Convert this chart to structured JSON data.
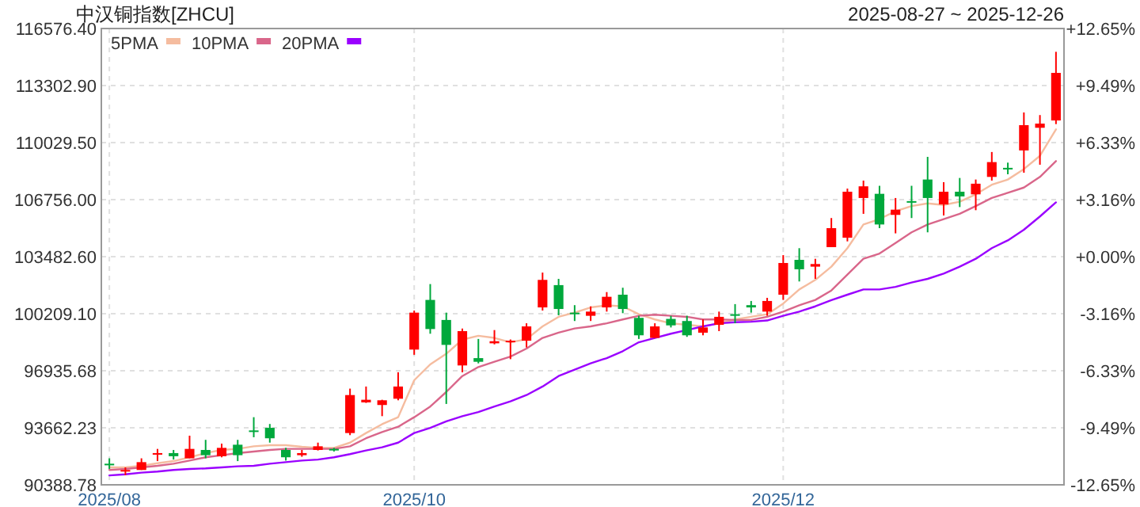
{
  "chart_data": {
    "type": "candlestick",
    "title": "中汉铜指数[ZHCU]",
    "subtitle": "2025-08-27 ~ 2025-12-26",
    "categories": [
      "2025/08",
      null,
      null,
      null,
      null,
      null,
      null,
      null,
      null,
      null,
      null,
      null,
      null,
      null,
      null,
      null,
      null,
      null,
      null,
      "2025/10",
      null,
      null,
      null,
      null,
      null,
      null,
      null,
      null,
      null,
      null,
      null,
      null,
      null,
      null,
      null,
      null,
      null,
      null,
      null,
      null,
      null,
      null,
      "2025/12",
      null,
      null,
      null,
      null,
      null,
      null,
      null,
      null,
      null,
      null,
      null,
      null,
      null,
      null,
      null,
      null,
      null
    ],
    "ohlc": [
      [
        91600,
        91910,
        91300,
        91540
      ],
      [
        91150,
        91390,
        90940,
        91240
      ],
      [
        91240,
        91910,
        91240,
        91690
      ],
      [
        92150,
        92450,
        91750,
        92210
      ],
      [
        92210,
        92390,
        91840,
        92030
      ],
      [
        91910,
        93210,
        91910,
        92450
      ],
      [
        92390,
        92970,
        91910,
        92090
      ],
      [
        92030,
        92750,
        91970,
        92510
      ],
      [
        92690,
        92970,
        91750,
        92090
      ],
      [
        93510,
        94270,
        93120,
        93420
      ],
      [
        93660,
        93880,
        92810,
        93060
      ],
      [
        92390,
        92510,
        91780,
        91970
      ],
      [
        92090,
        92390,
        92000,
        92210
      ],
      [
        92390,
        92810,
        92360,
        92600
      ],
      [
        92450,
        92510,
        92300,
        92360
      ],
      [
        93360,
        95910,
        93240,
        95540
      ],
      [
        95120,
        96030,
        95090,
        95270
      ],
      [
        94970,
        95270,
        94330,
        95240
      ],
      [
        95330,
        96850,
        95240,
        96030
      ],
      [
        98150,
        100390,
        97850,
        100270
      ],
      [
        101000,
        101910,
        99060,
        99330
      ],
      [
        99850,
        100270,
        95030,
        98420
      ],
      [
        97240,
        99360,
        96850,
        99210
      ],
      [
        97660,
        98760,
        97360,
        97450
      ],
      [
        98510,
        99270,
        98450,
        98630
      ],
      [
        98570,
        98730,
        97600,
        98660
      ],
      [
        98660,
        99660,
        98270,
        99480
      ],
      [
        100570,
        102570,
        100390,
        102150
      ],
      [
        101850,
        102210,
        100120,
        100480
      ],
      [
        100270,
        100700,
        99790,
        100180
      ],
      [
        100090,
        100630,
        99790,
        100330
      ],
      [
        100570,
        101450,
        100330,
        101180
      ],
      [
        101300,
        101700,
        100240,
        100480
      ],
      [
        99970,
        100090,
        98760,
        98970
      ],
      [
        98820,
        99660,
        98820,
        99480
      ],
      [
        99910,
        100090,
        99420,
        99540
      ],
      [
        99790,
        100090,
        98880,
        98970
      ],
      [
        99120,
        99880,
        98970,
        99420
      ],
      [
        99570,
        100330,
        99210,
        100030
      ],
      [
        100180,
        100760,
        99660,
        100090
      ],
      [
        100700,
        100940,
        100270,
        100570
      ],
      [
        100330,
        101120,
        100090,
        100940
      ],
      [
        101300,
        103570,
        101000,
        103120
      ],
      [
        103300,
        103970,
        102060,
        102760
      ],
      [
        102910,
        103360,
        102210,
        103060
      ],
      [
        104030,
        105700,
        104030,
        105120
      ],
      [
        104570,
        107390,
        104360,
        107210
      ],
      [
        106850,
        107850,
        105940,
        107520
      ],
      [
        107090,
        107550,
        105120,
        105330
      ],
      [
        105880,
        106850,
        104820,
        106180
      ],
      [
        106670,
        107550,
        105700,
        106610
      ],
      [
        107910,
        109210,
        104880,
        106850
      ],
      [
        106480,
        107760,
        105850,
        107210
      ],
      [
        107210,
        108000,
        106330,
        106940
      ],
      [
        107060,
        107910,
        106150,
        107670
      ],
      [
        108060,
        109490,
        107850,
        108910
      ],
      [
        108580,
        108880,
        108210,
        108520
      ],
      [
        109580,
        111760,
        108300,
        111030
      ],
      [
        110880,
        111610,
        108760,
        111120
      ],
      [
        111300,
        115240,
        111090,
        114030
      ]
    ],
    "series": [
      {
        "name": "5PMA",
        "type": "line",
        "color": "#f5bc9f",
        "values": [
          91390,
          91390,
          91480,
          91630,
          91750,
          91970,
          92210,
          92390,
          92450,
          92600,
          92660,
          92660,
          92570,
          92510,
          92510,
          92810,
          93360,
          93870,
          94270,
          96390,
          97300,
          97910,
          98720,
          98940,
          98820,
          98570,
          98750,
          99480,
          100030,
          100270,
          100570,
          100690,
          100630,
          100180,
          99880,
          99660,
          99570,
          99480,
          99660,
          99880,
          100030,
          100180,
          100790,
          101600,
          102150,
          102910,
          103970,
          105330,
          105640,
          106090,
          106390,
          106540,
          106450,
          106640,
          107060,
          107610,
          107910,
          108510,
          109270,
          110790
        ]
      },
      {
        "name": "10PMA",
        "type": "line",
        "color": "#d9668a",
        "values": [
          91240,
          91300,
          91390,
          91480,
          91600,
          91780,
          91970,
          92090,
          92210,
          92300,
          92390,
          92450,
          92450,
          92450,
          92450,
          92600,
          93060,
          93420,
          93720,
          94270,
          94880,
          95720,
          96630,
          97150,
          97450,
          97750,
          98210,
          98820,
          99120,
          99360,
          99480,
          99660,
          99880,
          100090,
          100150,
          100090,
          100030,
          99880,
          99880,
          99850,
          99850,
          100030,
          100330,
          100690,
          101000,
          101540,
          102450,
          103360,
          103660,
          104270,
          104880,
          105330,
          105640,
          105940,
          106390,
          106850,
          107150,
          107450,
          108060,
          108970
        ]
      },
      {
        "name": "20PMA",
        "type": "line",
        "color": "#9a00ff",
        "values": [
          90930,
          90990,
          91090,
          91150,
          91240,
          91300,
          91330,
          91390,
          91450,
          91480,
          91600,
          91690,
          91780,
          91840,
          91970,
          92150,
          92360,
          92540,
          92810,
          93360,
          93660,
          94030,
          94330,
          94570,
          94880,
          95180,
          95540,
          96030,
          96630,
          97000,
          97360,
          97660,
          98060,
          98570,
          98820,
          99060,
          99270,
          99480,
          99660,
          99720,
          99750,
          99820,
          100090,
          100330,
          100630,
          100990,
          101300,
          101600,
          101600,
          101750,
          102000,
          102210,
          102510,
          102910,
          103360,
          103970,
          104420,
          105030,
          105790,
          106600
        ]
      }
    ],
    "ylim": [
      90388.78,
      116576.4
    ],
    "yticks": [
      {
        "value": 90388.78,
        "label": "90388.78"
      },
      {
        "value": 93662.23,
        "label": "93662.23"
      },
      {
        "value": 96935.68,
        "label": "96935.68"
      },
      {
        "value": 100209.1,
        "label": "100209.10"
      },
      {
        "value": 103482.6,
        "label": "103482.60"
      },
      {
        "value": 106756,
        "label": "106756.00"
      },
      {
        "value": 110029.5,
        "label": "110029.50"
      },
      {
        "value": 113302.9,
        "label": "113302.90"
      },
      {
        "value": 116576.4,
        "label": "116576.40"
      }
    ],
    "y2lim": [
      -12.65,
      12.65
    ],
    "y2ticks": [
      {
        "value": 12.65,
        "label": "+12.65%"
      },
      {
        "value": 9.49,
        "label": "+9.49%"
      },
      {
        "value": 6.33,
        "label": "+6.33%"
      },
      {
        "value": 3.16,
        "label": "+3.16%"
      },
      {
        "value": 0,
        "label": "+0.00%"
      },
      {
        "value": -3.16,
        "label": "-3.16%"
      },
      {
        "value": -6.33,
        "label": "-6.33%"
      },
      {
        "value": -9.49,
        "label": "-9.49%"
      },
      {
        "value": -12.65,
        "label": "-12.65%"
      }
    ],
    "grid": true,
    "legend": "top left"
  }
}
